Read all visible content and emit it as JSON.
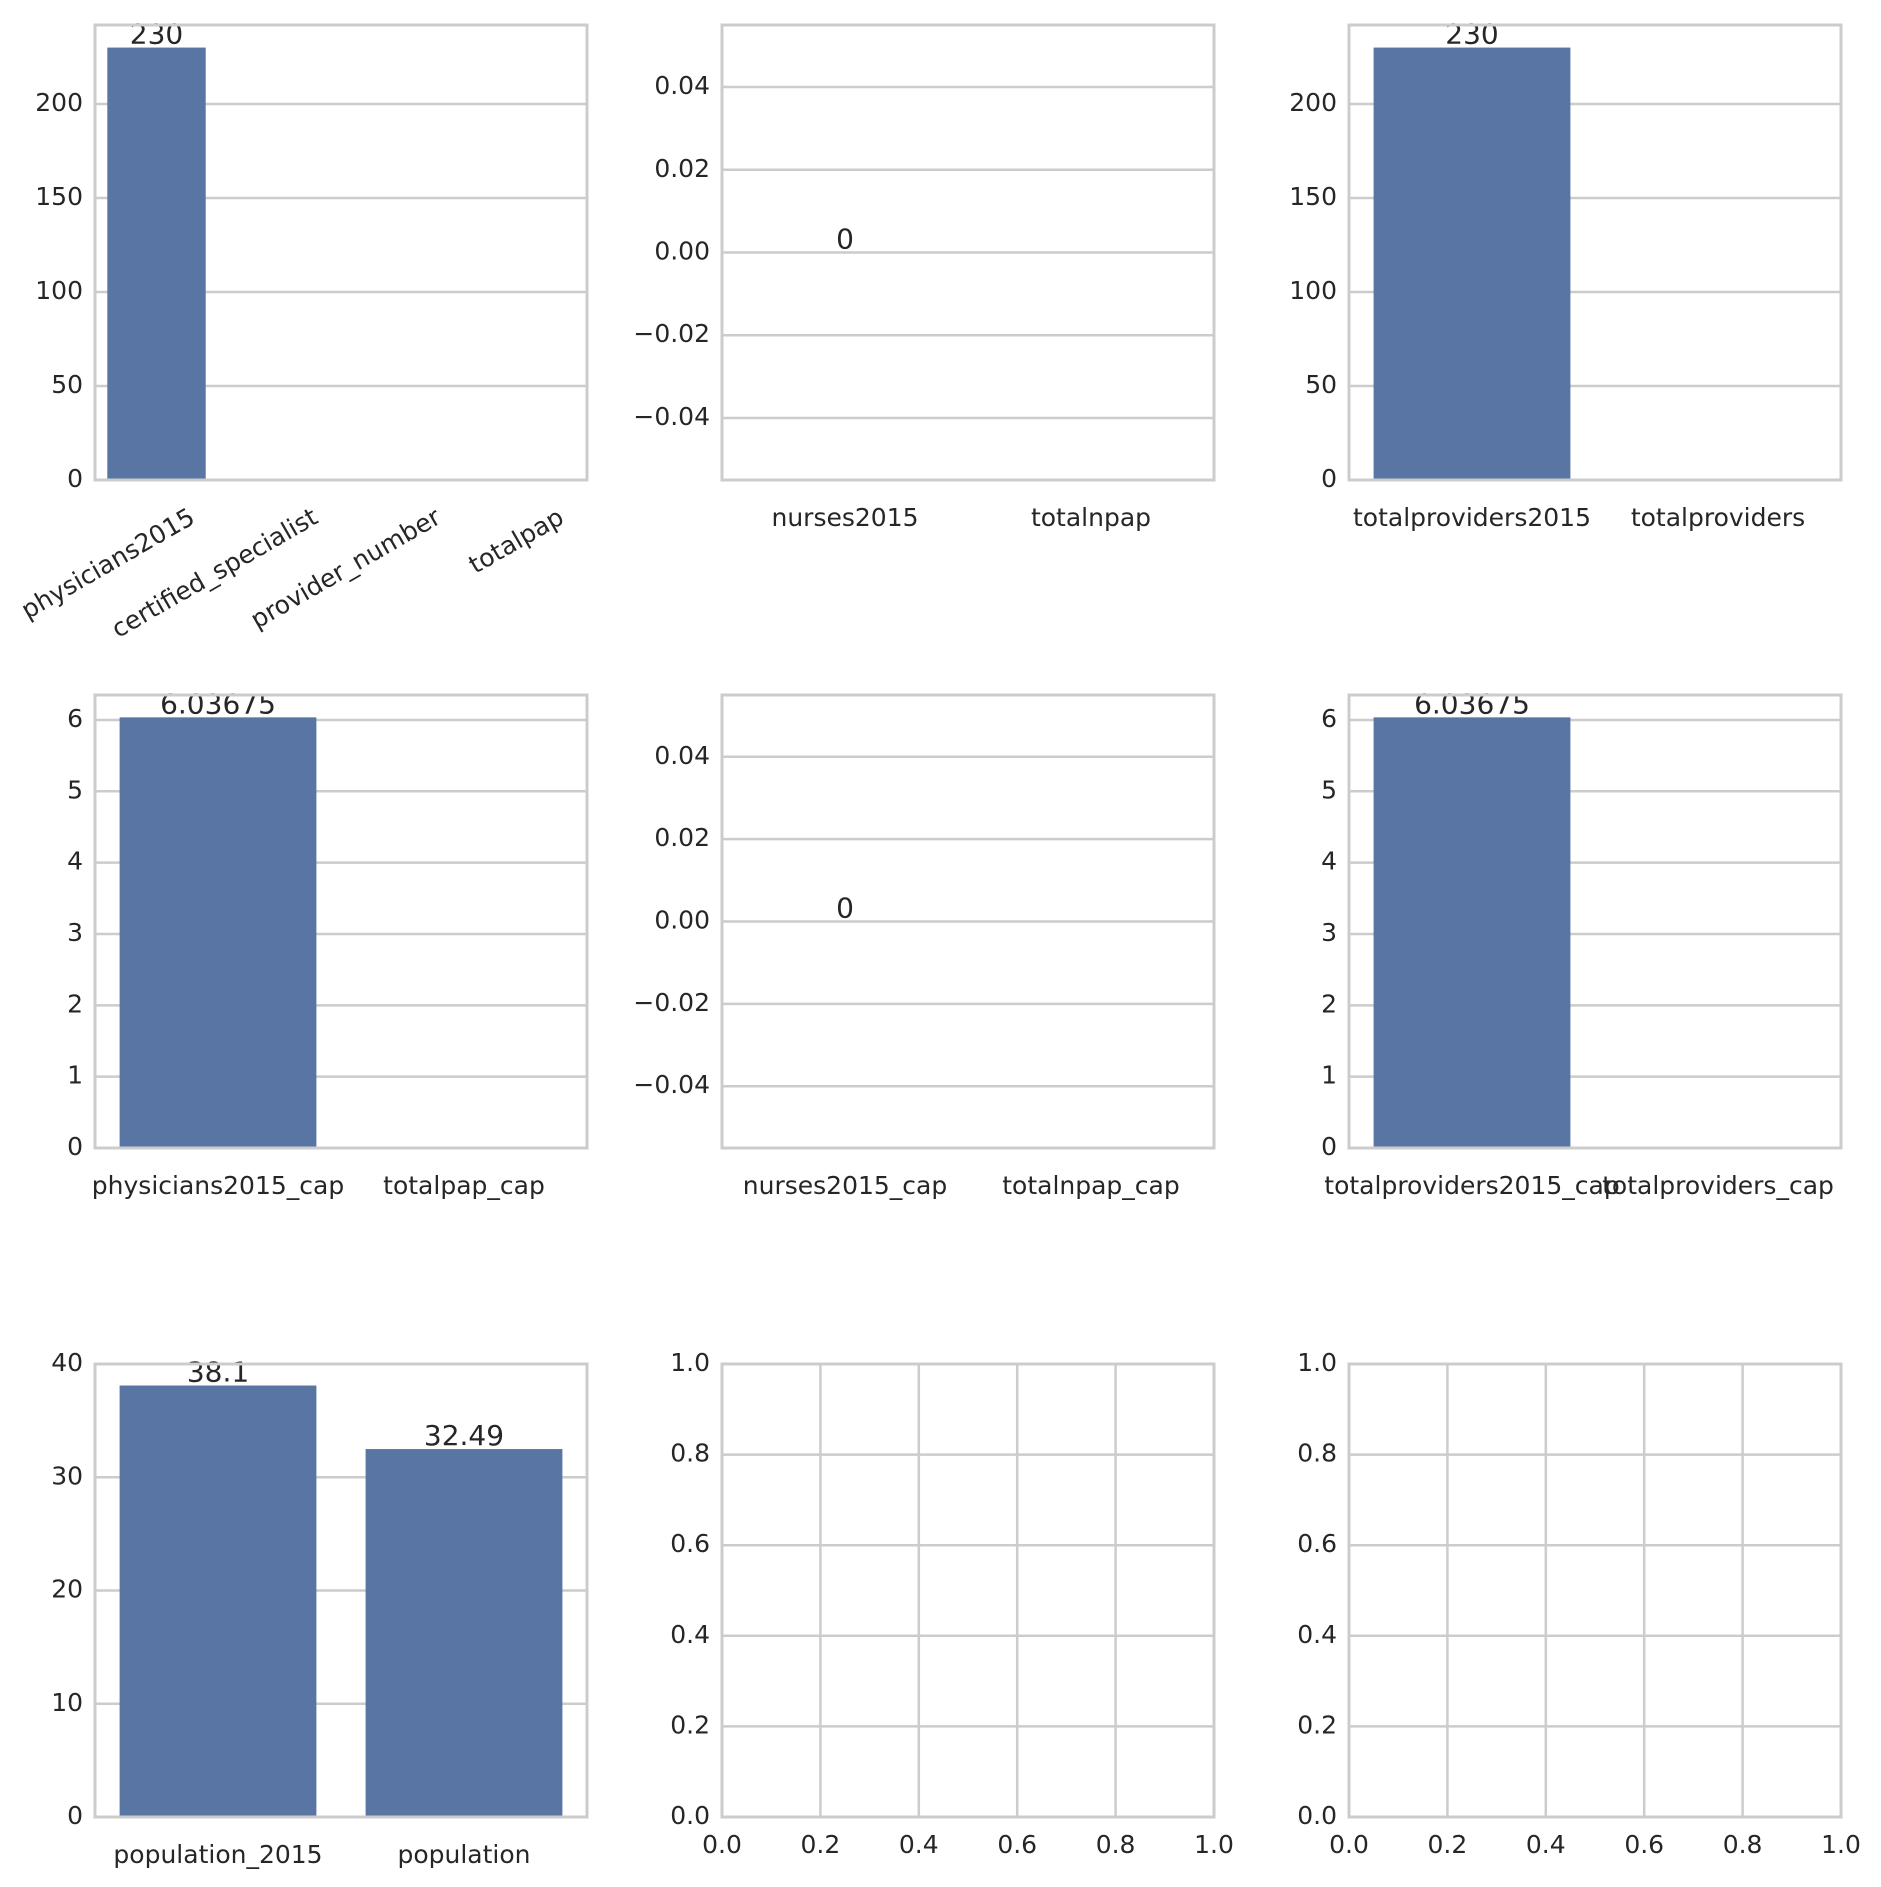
{
  "colors": {
    "bar": "#5975a4",
    "grid": "#cccccc",
    "text": "#262626",
    "background": "#ffffff"
  },
  "chart_data": [
    {
      "type": "bar",
      "categories": [
        "physicians2015",
        "certified_specialist",
        "provider_number",
        "totalpap"
      ],
      "values": [
        230,
        0,
        0,
        0
      ],
      "data_labels": [
        "230"
      ],
      "ylim": [
        0,
        242
      ],
      "yticks": [
        "0",
        "50",
        "100",
        "150",
        "200"
      ],
      "xtick_rotation": 30,
      "grid": "y"
    },
    {
      "type": "bar",
      "categories": [
        "nurses2015",
        "totalnpap"
      ],
      "values": [
        0,
        0
      ],
      "data_labels": [
        "0"
      ],
      "ylim": [
        -0.055,
        0.055
      ],
      "yticks": [
        "−0.04",
        "−0.02",
        "0.00",
        "0.02",
        "0.04"
      ],
      "grid": "y"
    },
    {
      "type": "bar",
      "categories": [
        "totalproviders2015",
        "totalproviders"
      ],
      "values": [
        230,
        0
      ],
      "data_labels": [
        "230"
      ],
      "ylim": [
        0,
        242
      ],
      "yticks": [
        "0",
        "50",
        "100",
        "150",
        "200"
      ],
      "grid": "y"
    },
    {
      "type": "bar",
      "categories": [
        "physicians2015_cap",
        "totalpap_cap"
      ],
      "values": [
        6.03675,
        0
      ],
      "data_labels": [
        "6.03675"
      ],
      "ylim": [
        0,
        6.35
      ],
      "yticks": [
        "0",
        "1",
        "2",
        "3",
        "4",
        "5",
        "6"
      ],
      "grid": "y"
    },
    {
      "type": "bar",
      "categories": [
        "nurses2015_cap",
        "totalnpap_cap"
      ],
      "values": [
        0,
        0
      ],
      "data_labels": [
        "0"
      ],
      "ylim": [
        -0.055,
        0.055
      ],
      "yticks": [
        "−0.04",
        "−0.02",
        "0.00",
        "0.02",
        "0.04"
      ],
      "grid": "y"
    },
    {
      "type": "bar",
      "categories": [
        "totalproviders2015_cap",
        "totalproviders_cap"
      ],
      "values": [
        6.03675,
        0
      ],
      "data_labels": [
        "6.03675"
      ],
      "ylim": [
        0,
        6.35
      ],
      "yticks": [
        "0",
        "1",
        "2",
        "3",
        "4",
        "5",
        "6"
      ],
      "grid": "y"
    },
    {
      "type": "bar",
      "categories": [
        "population_2015",
        "population"
      ],
      "values": [
        38.1,
        32.49
      ],
      "data_labels": [
        "38.1",
        "32.49"
      ],
      "ylim": [
        0,
        40
      ],
      "yticks": [
        "0",
        "10",
        "20",
        "30",
        "40"
      ],
      "grid": "y"
    },
    {
      "type": "table",
      "categories": [],
      "values": [],
      "data_labels": [],
      "xlim": [
        0,
        1
      ],
      "ylim": [
        0,
        1
      ],
      "xticks": [
        "0.0",
        "0.2",
        "0.4",
        "0.6",
        "0.8",
        "1.0"
      ],
      "yticks": [
        "0.0",
        "0.2",
        "0.4",
        "0.6",
        "0.8",
        "1.0"
      ],
      "grid": "both"
    },
    {
      "type": "table",
      "categories": [],
      "values": [],
      "data_labels": [],
      "xlim": [
        0,
        1
      ],
      "ylim": [
        0,
        1
      ],
      "xticks": [
        "0.0",
        "0.2",
        "0.4",
        "0.6",
        "0.8",
        "1.0"
      ],
      "yticks": [
        "0.0",
        "0.2",
        "0.4",
        "0.6",
        "0.8",
        "1.0"
      ],
      "grid": "both"
    }
  ]
}
